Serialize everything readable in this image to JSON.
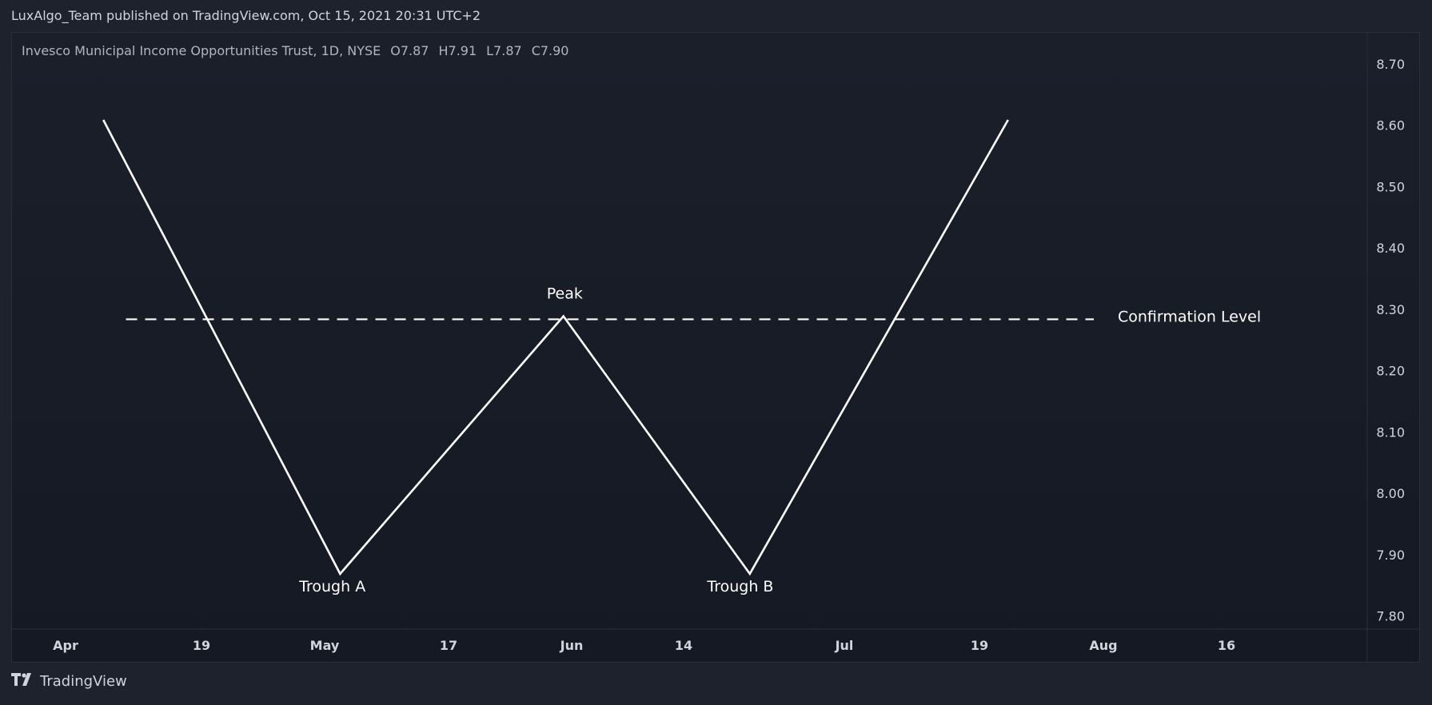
{
  "header": {
    "published_line": "LuxAlgo_Team published on TradingView.com, Oct 15, 2021 20:31 UTC+2"
  },
  "legend": {
    "symbol_line": "Invesco Municipal Income Opportunities Trust, 1D, NYSE",
    "open": "O7.87",
    "high": "H7.91",
    "low": "L7.87",
    "close": "C7.90"
  },
  "footer": {
    "brand": "TradingView",
    "logo_icon": "tradingview-logo-icon"
  },
  "chart_data": {
    "type": "line",
    "x_ticks": [
      "Apr",
      "19",
      "May",
      "17",
      "Jun",
      "14",
      "Jul",
      "19",
      "Aug",
      "16"
    ],
    "y_ticks": [
      "8.70",
      "8.60",
      "8.50",
      "8.40",
      "8.30",
      "8.20",
      "8.10",
      "8.00",
      "7.90",
      "7.80"
    ],
    "ylim": [
      7.78,
      8.752
    ],
    "series": [
      {
        "points": [
          {
            "x": "2021-04-06",
            "y": 8.61
          },
          {
            "x": "2021-05-03",
            "y": 7.87
          },
          {
            "x": "2021-05-31",
            "y": 8.29
          },
          {
            "x": "2021-06-21",
            "y": 7.87
          },
          {
            "x": "2021-07-22",
            "y": 8.61
          }
        ]
      }
    ],
    "confirmation_level": {
      "label": "Confirmation Level",
      "y": 8.285,
      "x_start": "2021-04-09",
      "x_end": "2021-07-31"
    },
    "annotations": [
      {
        "text": "Peak",
        "x": "2021-05-31",
        "y": 8.29
      },
      {
        "text": "Trough A",
        "x": "2021-05-02",
        "y": 7.87
      },
      {
        "text": "Trough B",
        "x": "2021-06-20",
        "y": 7.87
      }
    ],
    "line_color": "#ffffff",
    "background_color": "#161a25",
    "text_color": "#d1d4dc",
    "grid": false
  }
}
